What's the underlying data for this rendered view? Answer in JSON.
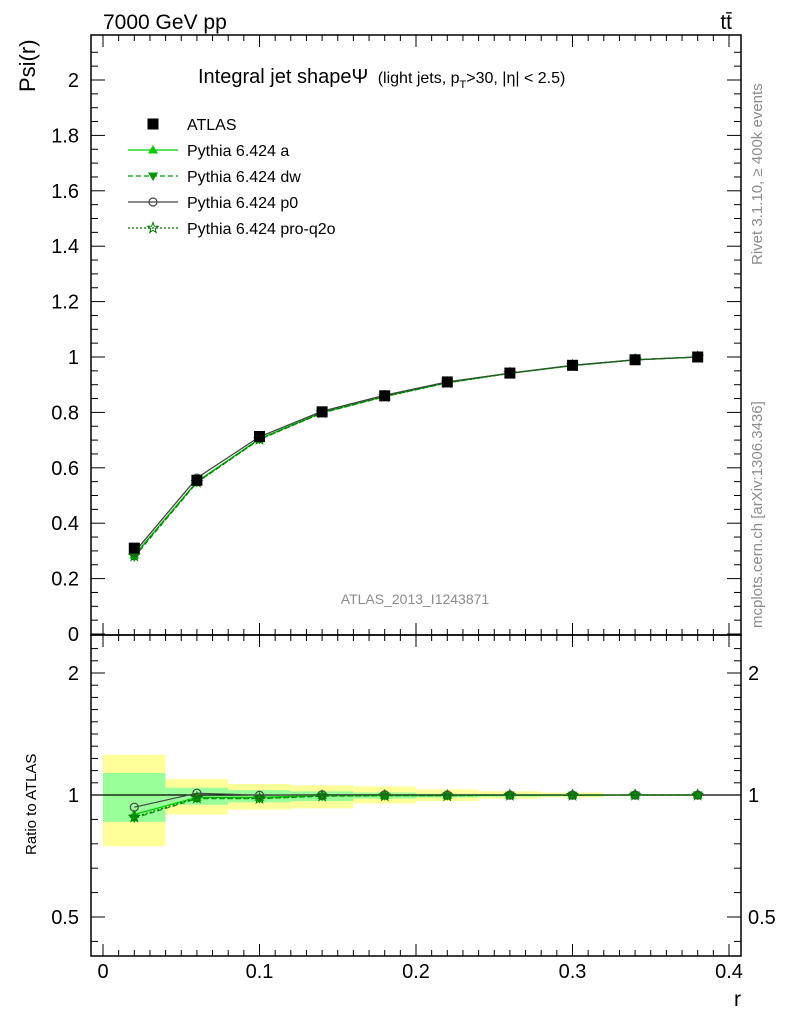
{
  "header": {
    "left": "7000 GeV pp",
    "right": "tt̄"
  },
  "side_labels": {
    "rivet": "Rivet 3.1.10, ≥ 400k events",
    "mcplots": "mcplots.cern.ch [arXiv:1306.3436]"
  },
  "watermark": "ATLAS_2013_I1243871",
  "chart_data": [
    {
      "type": "line",
      "title": "Integral jet shapeΨ",
      "title_suffix": {
        "pre": "(light jets, p",
        "sub": "T",
        "post": ">30, |η| < 2.5)"
      },
      "ylabel": "Psi(r)",
      "xlabel": "r",
      "xlim": [
        0,
        0.4
      ],
      "ylim": [
        0,
        2.15
      ],
      "y_ticks": [
        0,
        0.2,
        0.4,
        0.6,
        0.8,
        1,
        1.2,
        1.4,
        1.6,
        1.8,
        2
      ],
      "y_tick_labels": [
        "0",
        "0.2",
        "0.4",
        "0.6",
        "0.8",
        "1",
        "1.2",
        "1.4",
        "1.6",
        "1.8",
        "2"
      ],
      "x": [
        0.02,
        0.06,
        0.1,
        0.14,
        0.18,
        0.22,
        0.26,
        0.3,
        0.34,
        0.38
      ],
      "data": {
        "name": "ATLAS",
        "values": [
          0.31,
          0.555,
          0.713,
          0.802,
          0.86,
          0.91,
          0.942,
          0.97,
          0.99,
          1.0
        ],
        "color": "#000000",
        "marker": "square"
      },
      "series": [
        {
          "name": "Pythia 6.424 a",
          "color": "#00cc00",
          "dash": "",
          "marker": "triangle-up",
          "values": [
            0.285,
            0.55,
            0.705,
            0.8,
            0.858,
            0.908,
            0.941,
            0.969,
            0.99,
            1.0
          ]
        },
        {
          "name": "Pythia 6.424 dw",
          "color": "#009900",
          "dash": "5,3",
          "marker": "triangle-down",
          "values": [
            0.278,
            0.547,
            0.702,
            0.798,
            0.857,
            0.907,
            0.941,
            0.969,
            0.99,
            1.0
          ]
        },
        {
          "name": "Pythia 6.424 p0",
          "color": "#444444",
          "dash": "",
          "marker": "circle-open",
          "values": [
            0.295,
            0.563,
            0.712,
            0.804,
            0.862,
            0.91,
            0.942,
            0.97,
            0.99,
            1.0
          ]
        },
        {
          "name": "Pythia 6.424 pro-q2o",
          "color": "#007700",
          "dash": "2,2",
          "marker": "star-open",
          "values": [
            0.282,
            0.548,
            0.703,
            0.799,
            0.857,
            0.907,
            0.941,
            0.969,
            0.99,
            1.0
          ]
        }
      ],
      "legend": "top-left"
    },
    {
      "type": "line",
      "ylabel": "Ratio to ATLAS",
      "xlabel": "r",
      "xlim": [
        0,
        0.4
      ],
      "ylim": [
        0.35,
        2.3
      ],
      "y_ticks": [
        0.5,
        1,
        2
      ],
      "y_tick_labels": [
        "0.5",
        "1",
        "2"
      ],
      "x_ticks": [
        0,
        0.1,
        0.2,
        0.3,
        0.4
      ],
      "x_tick_labels": [
        "0",
        "0.1",
        "0.2",
        "0.3",
        "0.4"
      ],
      "bin_edges": [
        0,
        0.04,
        0.08,
        0.12,
        0.16,
        0.2,
        0.24,
        0.28,
        0.32,
        0.36,
        0.4
      ],
      "band_inner": [
        [
          0.89,
          1.18
        ],
        [
          0.96,
          1.06
        ],
        [
          0.97,
          1.04
        ],
        [
          0.975,
          1.03
        ],
        [
          0.985,
          1.02
        ],
        [
          0.99,
          1.01
        ],
        [
          0.993,
          1.008
        ],
        [
          0.995,
          1.006
        ],
        [
          0.998,
          1.003
        ],
        [
          0.999,
          1.001
        ]
      ],
      "band_outer": [
        [
          0.79,
          1.33
        ],
        [
          0.92,
          1.13
        ],
        [
          0.94,
          1.09
        ],
        [
          0.945,
          1.08
        ],
        [
          0.965,
          1.07
        ],
        [
          0.975,
          1.045
        ],
        [
          0.985,
          1.03
        ],
        [
          0.99,
          1.02
        ],
        [
          0.997,
          1.004
        ],
        [
          0.999,
          1.002
        ]
      ],
      "band_colors": {
        "inner": "#99ff99",
        "outer": "#ffff99"
      },
      "series": [
        {
          "name": "Pythia 6.424 a",
          "values": [
            0.92,
            0.99,
            0.99,
            0.998,
            0.998,
            0.998,
            0.999,
            0.999,
            1.0,
            1.0
          ]
        },
        {
          "name": "Pythia 6.424 dw",
          "values": [
            0.905,
            0.985,
            0.985,
            0.995,
            0.997,
            0.997,
            0.999,
            0.999,
            1.0,
            1.0
          ]
        },
        {
          "name": "Pythia 6.424 p0",
          "values": [
            0.95,
            1.015,
            0.999,
            1.002,
            1.002,
            1.0,
            1.0,
            1.0,
            1.0,
            1.0
          ]
        },
        {
          "name": "Pythia 6.424 pro-q2o",
          "values": [
            0.91,
            0.988,
            0.986,
            0.996,
            0.997,
            0.997,
            0.999,
            0.999,
            1.0,
            1.0
          ]
        }
      ]
    }
  ]
}
